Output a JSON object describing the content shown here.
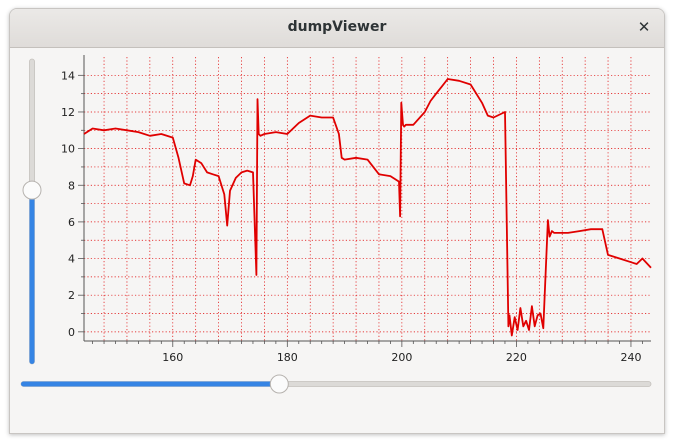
{
  "window": {
    "title": "dumpViewer",
    "close_glyph": "✕"
  },
  "colors": {
    "series": "#e00000",
    "grid": "#e00000",
    "accent": "#3584e4"
  },
  "sliders": {
    "vertical": {
      "fraction": 0.57
    },
    "horizontal": {
      "fraction": 0.41
    }
  },
  "chart_data": {
    "type": "line",
    "title": "",
    "xlabel": "",
    "ylabel": "",
    "xlim": [
      144.5,
      243.5
    ],
    "ylim": [
      -0.5,
      15
    ],
    "x_ticks": [
      160,
      180,
      200,
      220,
      240
    ],
    "y_ticks": [
      0,
      2,
      4,
      6,
      8,
      10,
      12,
      14
    ],
    "grid": true,
    "legend": "none",
    "series": [
      {
        "x": [
          144.5,
          146,
          148,
          150,
          152,
          154,
          156,
          158,
          160,
          161,
          162,
          163,
          163.5,
          164,
          165,
          166,
          167,
          168,
          169,
          169.5,
          170,
          171,
          172,
          173,
          174,
          174.6,
          174.8,
          175,
          175.3,
          176,
          178,
          180,
          182,
          184,
          186,
          188,
          189,
          189.5,
          190,
          192,
          194,
          196,
          198,
          199.5,
          199.7,
          199.9,
          200.2,
          200.4,
          200.7,
          202,
          204,
          205,
          206,
          207,
          208,
          210,
          212,
          214,
          215,
          216,
          218,
          218.6,
          218.8,
          219.2,
          219.7,
          220.2,
          220.7,
          221.2,
          221.7,
          222.2,
          222.7,
          223.2,
          223.7,
          224.2,
          224.7,
          225,
          225.5,
          225.8,
          226.2,
          226.6,
          227,
          229,
          231,
          233,
          235,
          236,
          238,
          240,
          241,
          242,
          243.5
        ],
        "y": [
          10.8,
          11.1,
          11.0,
          11.1,
          11.0,
          10.9,
          10.7,
          10.8,
          10.6,
          9.5,
          8.1,
          8.0,
          8.5,
          9.4,
          9.2,
          8.7,
          8.6,
          8.5,
          7.5,
          5.8,
          7.7,
          8.4,
          8.7,
          8.8,
          8.7,
          3.1,
          12.7,
          10.8,
          10.7,
          10.8,
          10.9,
          10.8,
          11.4,
          11.8,
          11.7,
          11.7,
          10.8,
          9.5,
          9.4,
          9.5,
          9.4,
          8.6,
          8.5,
          8.2,
          6.3,
          12.5,
          11.3,
          11.2,
          11.3,
          11.3,
          12.0,
          12.6,
          13.0,
          13.4,
          13.8,
          13.7,
          13.5,
          12.5,
          11.8,
          11.7,
          12.0,
          0.3,
          0.9,
          -0.2,
          0.8,
          0.1,
          1.3,
          0.3,
          0.6,
          0.1,
          1.4,
          0.3,
          0.9,
          1.0,
          0.2,
          2.4,
          6.1,
          5.2,
          5.5,
          5.4,
          5.4,
          5.4,
          5.5,
          5.6,
          5.6,
          4.2,
          4.0,
          3.8,
          3.7,
          4.0,
          3.5
        ]
      }
    ]
  }
}
